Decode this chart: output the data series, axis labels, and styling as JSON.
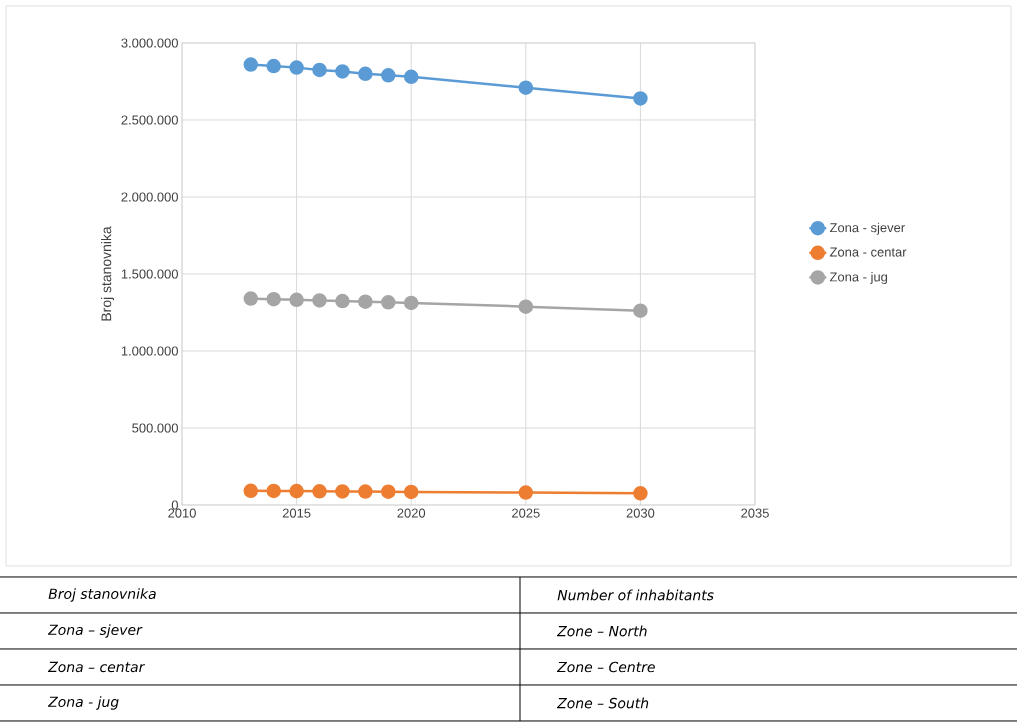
{
  "chart_data": {
    "type": "line",
    "ylabel": "Broj stanovnika",
    "x": [
      2013,
      2014,
      2015,
      2016,
      2017,
      2018,
      2019,
      2020,
      2025,
      2030
    ],
    "series": [
      {
        "name": "Zona - sjever",
        "color": "#5b9bd5",
        "values": [
          2860000,
          2850000,
          2840000,
          2825000,
          2815000,
          2800000,
          2790000,
          2780000,
          2710000,
          2640000
        ]
      },
      {
        "name": "Zona - centar",
        "color": "#ed7d31",
        "values": [
          92000,
          91000,
          90000,
          89000,
          88000,
          87000,
          86000,
          85000,
          81000,
          76000
        ]
      },
      {
        "name": "Zona - jug",
        "color": "#a5a5a5",
        "values": [
          1340000,
          1336000,
          1332000,
          1328000,
          1324000,
          1320000,
          1316000,
          1312000,
          1288000,
          1262000
        ]
      }
    ],
    "xlim": [
      2010,
      2035
    ],
    "xticks": [
      2010,
      2015,
      2020,
      2025,
      2030,
      2035
    ],
    "ylim": [
      0,
      3000000
    ],
    "yticks": [
      0,
      {
        "value": 500000,
        "label": "500.000"
      },
      {
        "value": 1000000,
        "label": "1.000.000"
      },
      {
        "value": 1500000,
        "label": "1.500.000"
      },
      {
        "value": 2000000,
        "label": "2.000.000"
      },
      {
        "value": 2500000,
        "label": "2.500.000"
      },
      {
        "value": 3000000,
        "label": "3.000.000"
      }
    ],
    "grid": true,
    "legend": "right",
    "marker": "circle",
    "line_style": "solid",
    "annotations": [
      "Broj stanovnika",
      "Number of inhabitants",
      "Zona – sjever",
      "Zone – North",
      "Zona – centar",
      "Zone – Centre",
      "Zona - jug",
      "Zone – South"
    ]
  }
}
